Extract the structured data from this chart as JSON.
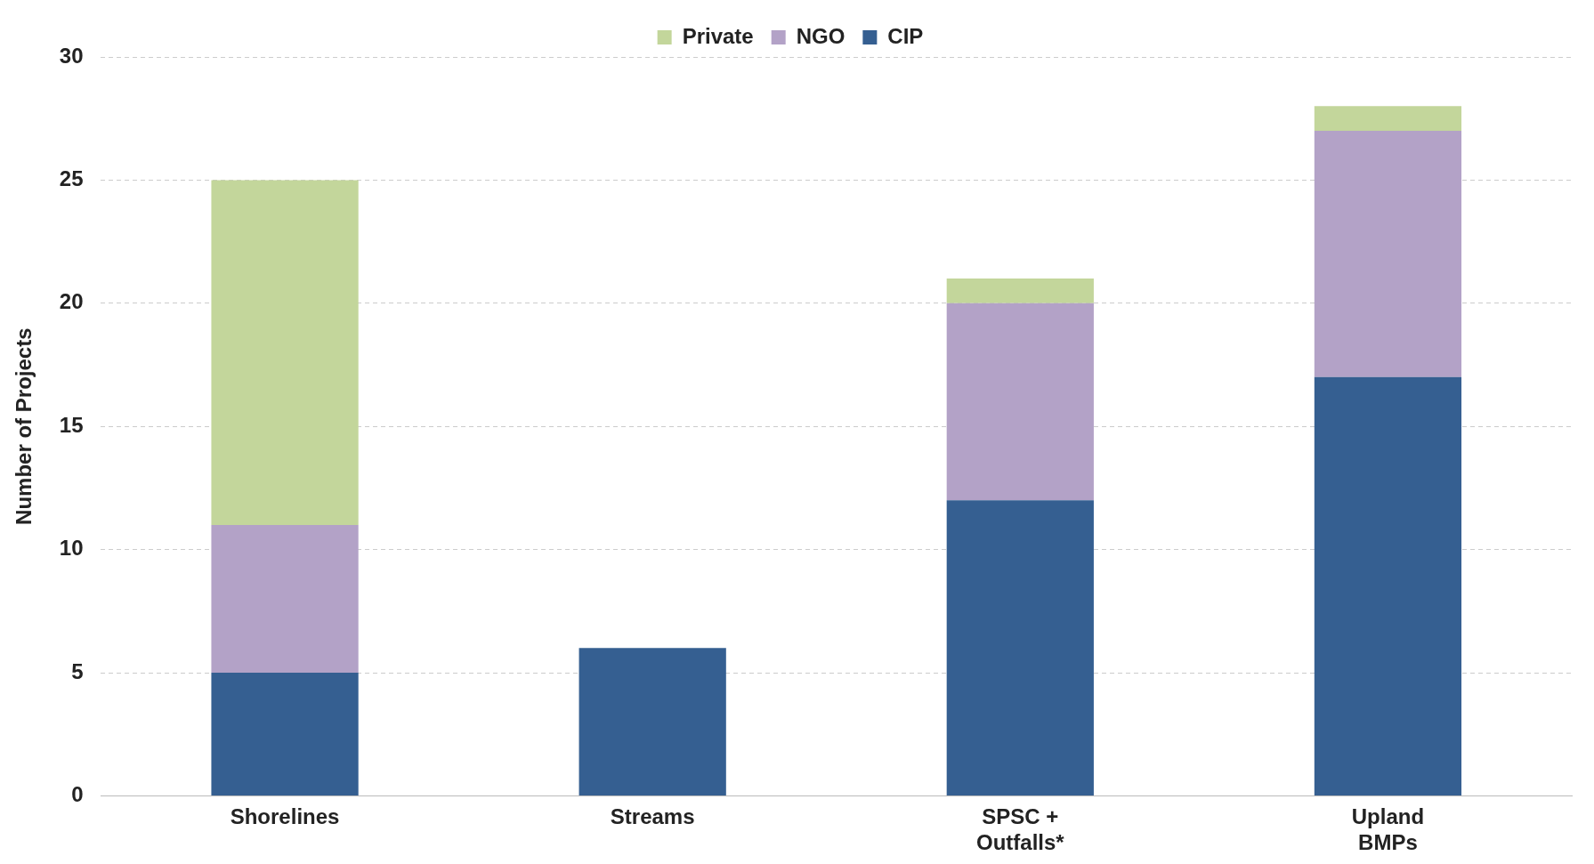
{
  "chart_data": {
    "type": "bar",
    "ylabel": "Number of Projects",
    "categories": [
      "Shorelines",
      "Streams",
      "SPSC + Outfalls*",
      "Upland BMPs"
    ],
    "stacked": true,
    "series": [
      {
        "name": "CIP",
        "color": "#355f91",
        "values": [
          5,
          6,
          12,
          17
        ]
      },
      {
        "name": "NGO",
        "color": "#b3a2c7",
        "values": [
          6,
          0,
          8,
          10
        ]
      },
      {
        "name": "Private",
        "color": "#c3d69b",
        "values": [
          14,
          0,
          1,
          1
        ]
      }
    ],
    "ylim": [
      0,
      30
    ],
    "yticks": [
      0,
      5,
      10,
      15,
      20,
      25,
      30
    ],
    "grid": "y",
    "legend": "top"
  }
}
